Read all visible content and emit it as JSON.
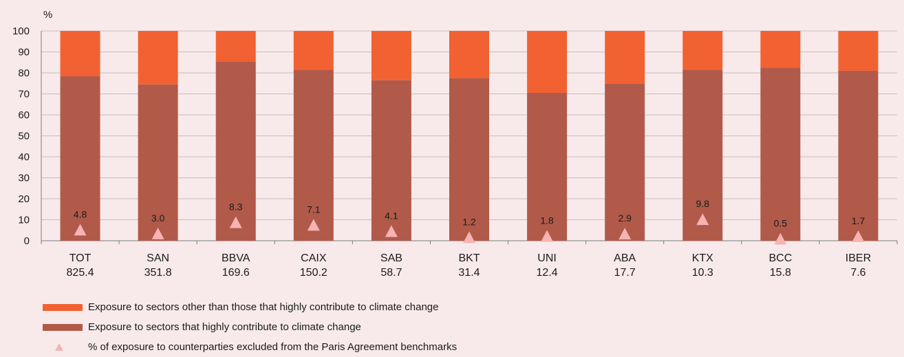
{
  "chart_data": {
    "type": "bar",
    "stacked": true,
    "y_unit_label": "%",
    "ylim": [
      0,
      100
    ],
    "yticks": [
      0,
      10,
      20,
      30,
      40,
      50,
      60,
      70,
      80,
      90,
      100
    ],
    "grid": true,
    "categories": [
      "TOT",
      "SAN",
      "BBVA",
      "CAIX",
      "SAB",
      "BKT",
      "UNI",
      "ABA",
      "KTX",
      "BCC",
      "IBER"
    ],
    "category_sublabels": [
      "825.4",
      "351.8",
      "169.6",
      "150.2",
      "58.7",
      "31.4",
      "12.4",
      "17.7",
      "10.3",
      "15.8",
      "7.6"
    ],
    "series": [
      {
        "name": "Exposure to sectors that highly contribute to climate change",
        "color": "#b15a4a",
        "values": [
          78.5,
          74.5,
          85.5,
          81.5,
          76.5,
          77.5,
          70.5,
          75,
          81.5,
          82.5,
          81
        ]
      },
      {
        "name": "Exposure to sectors other than those that highly contribute to climate change",
        "color": "#f26131",
        "values": [
          21.5,
          25.5,
          14.5,
          18.5,
          23.5,
          22.5,
          29.5,
          25,
          18.5,
          17.5,
          19
        ]
      }
    ],
    "markers": {
      "name": "% of exposure to counterparties excluded from the Paris Agreement benchmarks",
      "color": "#f6b3b2",
      "values": [
        4.8,
        3.0,
        8.3,
        7.1,
        4.1,
        1.2,
        1.8,
        2.9,
        9.8,
        0.5,
        1.7
      ],
      "labels": [
        "4.8",
        "3.0",
        "8.3",
        "7.1",
        "4.1",
        "1.2",
        "1.8",
        "2.9",
        "9.8",
        "0.5",
        "1.7"
      ]
    },
    "legend": {
      "placement": "bottom",
      "items": [
        "Exposure to sectors other than those that highly contribute to climate change",
        "Exposure to sectors that highly contribute to climate change",
        "% of exposure to counterparties excluded from the Paris Agreement benchmarks"
      ]
    }
  }
}
